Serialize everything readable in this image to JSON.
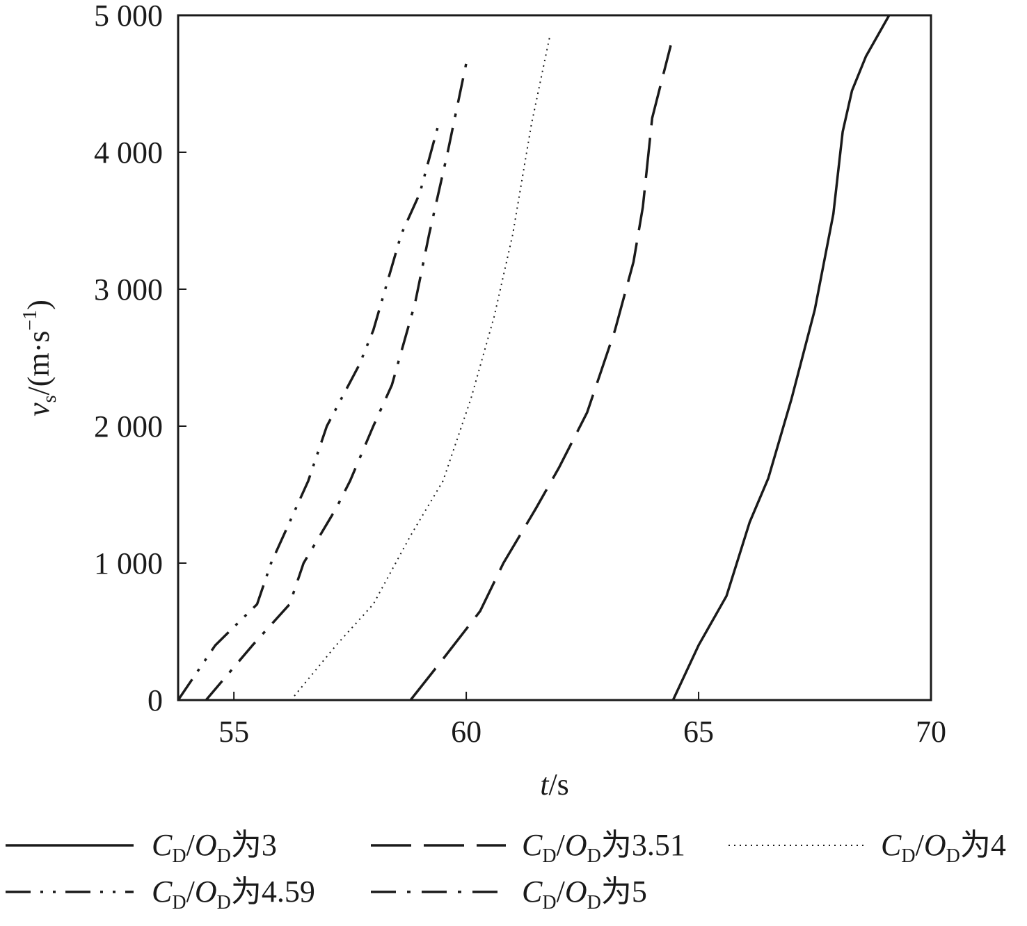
{
  "chart_data": {
    "type": "line",
    "title": "",
    "xlabel": {
      "var": "t",
      "unit": "/s"
    },
    "ylabel": {
      "var": "v",
      "sub": "s",
      "unit": "/(m·s",
      "sup": "−1",
      "close": ")"
    },
    "xlim": [
      53.8,
      70
    ],
    "ylim": [
      0,
      5000
    ],
    "xticks": [
      {
        "value": 55,
        "label": "55"
      },
      {
        "value": 60,
        "label": "60"
      },
      {
        "value": 65,
        "label": "65"
      },
      {
        "value": 70,
        "label": "70"
      }
    ],
    "yticks": [
      {
        "value": 0,
        "label": "0"
      },
      {
        "value": 1000,
        "label": "1 000"
      },
      {
        "value": 2000,
        "label": "2 000"
      },
      {
        "value": 3000,
        "label": "3 000"
      },
      {
        "value": 4000,
        "label": "4 000"
      },
      {
        "value": 5000,
        "label": "5 000"
      }
    ],
    "grid": false,
    "legend_position": "bottom",
    "series": [
      {
        "name": "CD/OD为3",
        "legend": {
          "c": "C",
          "csub": "D",
          "slash": "/",
          "o": "O",
          "osub": "D",
          "suffix": "为3"
        },
        "dash": "solid",
        "x": [
          64.45,
          65.0,
          65.6,
          66.1,
          66.5,
          67.0,
          67.5,
          67.9,
          68.1,
          68.3,
          68.6,
          69.1
        ],
        "y": [
          0,
          400,
          760,
          1300,
          1620,
          2200,
          2850,
          3550,
          4150,
          4450,
          4700,
          5000
        ]
      },
      {
        "name": "CD/OD为3.51",
        "legend": {
          "c": "C",
          "csub": "D",
          "slash": "/",
          "o": "O",
          "osub": "D",
          "suffix": "为3.51"
        },
        "dash": "long-dash",
        "x": [
          58.8,
          59.5,
          60.3,
          60.8,
          61.5,
          62.0,
          62.6,
          63.2,
          63.6,
          63.8,
          64.0,
          64.4
        ],
        "y": [
          0,
          300,
          650,
          1000,
          1400,
          1700,
          2100,
          2700,
          3200,
          3600,
          4250,
          4780
        ]
      },
      {
        "name": "CD/OD为4",
        "legend": {
          "c": "C",
          "csub": "D",
          "slash": "/",
          "o": "O",
          "osub": "D",
          "suffix": "为4"
        },
        "dash": "dotted",
        "x": [
          56.3,
          57.2,
          58.0,
          58.8,
          59.5,
          60.1,
          60.6,
          61.0,
          61.4,
          61.8
        ],
        "y": [
          30,
          400,
          700,
          1200,
          1600,
          2200,
          2800,
          3400,
          4200,
          4850
        ]
      },
      {
        "name": "CD/OD为4.59",
        "legend": {
          "c": "C",
          "csub": "D",
          "slash": "/",
          "o": "O",
          "osub": "D",
          "suffix": "为4.59"
        },
        "dash": "dash-dot-dot",
        "x": [
          53.8,
          54.6,
          55.5,
          55.8,
          56.6,
          57.0,
          57.7,
          58.0,
          58.6,
          59.0,
          59.4
        ],
        "y": [
          0,
          400,
          700,
          1000,
          1600,
          2000,
          2450,
          2700,
          3400,
          3700,
          4200
        ]
      },
      {
        "name": "CD/OD为5",
        "legend": {
          "c": "C",
          "csub": "D",
          "slash": "/",
          "o": "O",
          "osub": "D",
          "suffix": "为5"
        },
        "dash": "dash-dot",
        "x": [
          54.4,
          55.4,
          56.2,
          56.5,
          57.2,
          57.5,
          58.0,
          58.4,
          58.9,
          59.2,
          59.6,
          60.0
        ],
        "y": [
          0,
          400,
          700,
          1000,
          1400,
          1600,
          2000,
          2300,
          2900,
          3400,
          4000,
          4650
        ]
      }
    ]
  }
}
